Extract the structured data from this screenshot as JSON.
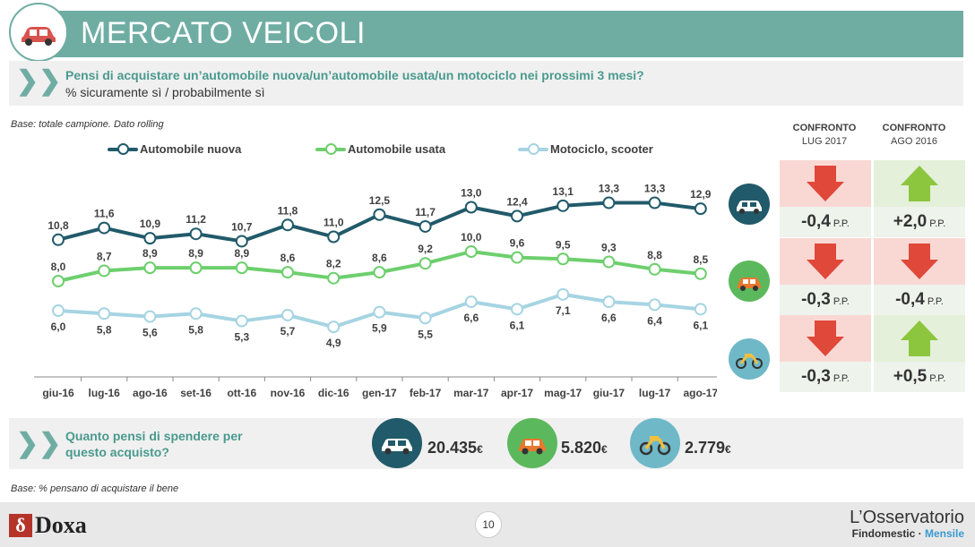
{
  "header": {
    "title": "MERCATO VEICOLI"
  },
  "question": {
    "text": "Pensi di acquistare un’automobile  nuova/un’automobile  usata/un motociclo  nei prossimi  3 mesi?",
    "subtext": "% sicuramente sì / probabilmente  sì"
  },
  "base_note_top": "Base: totale campione. Dato rolling",
  "base_note_bottom": "Base: % pensano di acquistare il bene",
  "colors": {
    "brand_teal": "#6fada3",
    "new_car": "#215a6a",
    "used_car": "#6dcf6d",
    "moto": "#a6d4e2",
    "up_arrow": "#8cc63f",
    "down_arrow": "#e0483a",
    "bg_down": "#f9d8d4",
    "bg_up": "#e4f0d9"
  },
  "chart_data": {
    "type": "line",
    "categories": [
      "giu-16",
      "lug-16",
      "ago-16",
      "set-16",
      "ott-16",
      "nov-16",
      "dic-16",
      "gen-17",
      "feb-17",
      "mar-17",
      "apr-17",
      "mag-17",
      "giu-17",
      "lug-17",
      "ago-17"
    ],
    "series": [
      {
        "name": "Automobile nuova",
        "color": "#215a6a",
        "values": [
          10.8,
          11.6,
          10.9,
          11.2,
          10.7,
          11.8,
          11.0,
          12.5,
          11.7,
          13.0,
          12.4,
          13.1,
          13.3,
          13.3,
          12.9
        ],
        "labels": [
          "10,8",
          "11,6",
          "10,9",
          "11,2",
          "10,7",
          "11,8",
          "11,0",
          "12,5",
          "11,7",
          "13,0",
          "12,4",
          "13,1",
          "13,3",
          "13,3",
          "12,9"
        ]
      },
      {
        "name": "Automobile usata",
        "color": "#6dcf6d",
        "values": [
          8.0,
          8.7,
          8.9,
          8.9,
          8.9,
          8.6,
          8.2,
          8.6,
          9.2,
          10.0,
          9.6,
          9.5,
          9.3,
          8.8,
          8.5
        ],
        "labels": [
          "8,0",
          "8,7",
          "8,9",
          "8,9",
          "8,9",
          "8,6",
          "8,2",
          "8,6",
          "9,2",
          "10,0",
          "9,6",
          "9,5",
          "9,3",
          "8,8",
          "8,5"
        ]
      },
      {
        "name": "Motociclo, scooter",
        "color": "#a6d4e2",
        "values": [
          6.0,
          5.8,
          5.6,
          5.8,
          5.3,
          5.7,
          4.9,
          5.9,
          5.5,
          6.6,
          6.1,
          7.1,
          6.6,
          6.4,
          6.1
        ],
        "labels": [
          "6,0",
          "5,8",
          "5,6",
          "5,8",
          "5,3",
          "5,7",
          "4,9",
          "5,9",
          "5,5",
          "6,6",
          "6,1",
          "7,1",
          "6,6",
          "6,4",
          "6,1"
        ]
      }
    ]
  },
  "comparison": {
    "headers": [
      {
        "line1": "CONFRONTO",
        "line2": "LUG 2017"
      },
      {
        "line1": "CONFRONTO",
        "line2": "AGO 2016"
      }
    ],
    "rows": [
      {
        "icon": "car-new-icon",
        "cells": [
          {
            "direction": "down",
            "value": "-0,4",
            "unit": "P.P."
          },
          {
            "direction": "up",
            "value": "+2,0",
            "unit": "P.P."
          }
        ]
      },
      {
        "icon": "car-used-icon",
        "cells": [
          {
            "direction": "down",
            "value": "-0,3",
            "unit": "P.P."
          },
          {
            "direction": "down",
            "value": "-0,4",
            "unit": "P.P."
          }
        ]
      },
      {
        "icon": "motorcycle-icon",
        "cells": [
          {
            "direction": "down",
            "value": "-0,3",
            "unit": "P.P."
          },
          {
            "direction": "up",
            "value": "+0,5",
            "unit": "P.P."
          }
        ]
      }
    ]
  },
  "spending": {
    "question": "Quanto pensi di spendere per questo acquisto?",
    "items": [
      {
        "icon": "car-new-icon",
        "value": "20.435",
        "currency": "€"
      },
      {
        "icon": "car-used-icon",
        "value": "5.820",
        "currency": "€"
      },
      {
        "icon": "motorcycle-icon",
        "value": "2.779",
        "currency": "€"
      }
    ]
  },
  "footer": {
    "page_number": "10",
    "brand_left": "Doxa",
    "brand_left_mark": "δ",
    "brand_right_title": "L’Osservatorio",
    "brand_right_sub_a": "Findomestic · ",
    "brand_right_sub_b": "Mensile"
  }
}
